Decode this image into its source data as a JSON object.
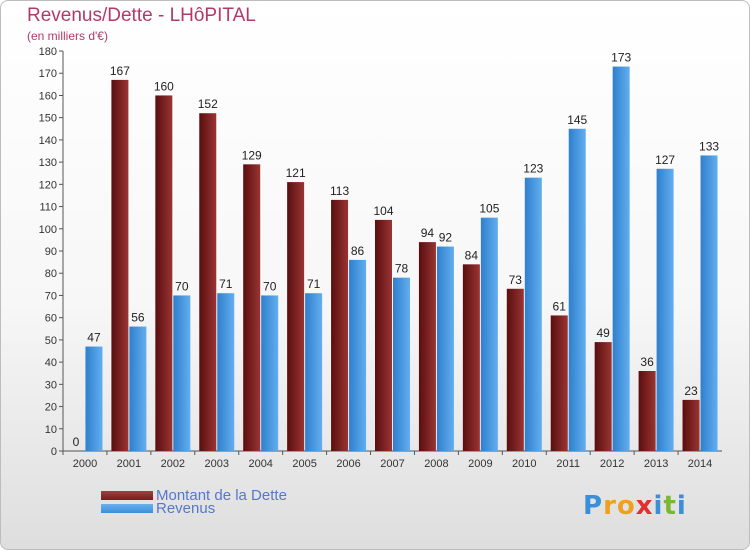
{
  "header": {
    "title": "Revenus/Dette - LHôPITAL",
    "subtitle": "(en milliers d'€)"
  },
  "legend": {
    "items": [
      {
        "label": "Montant de la Dette",
        "color": "#7a1c1c"
      },
      {
        "label": "Revenus",
        "color": "#3a8fd8"
      }
    ]
  },
  "logo": {
    "letters": [
      "P",
      "r",
      "o",
      "x",
      "i",
      "t",
      "i"
    ],
    "colors": [
      "#3a8fd8",
      "#f0a020",
      "#f0a020",
      "#e03030",
      "#3a8fd8",
      "#7cb82f",
      "#3a8fd8"
    ]
  },
  "chart_data": {
    "type": "bar",
    "categories": [
      "2000",
      "2001",
      "2002",
      "2003",
      "2004",
      "2005",
      "2006",
      "2007",
      "2008",
      "2009",
      "2010",
      "2011",
      "2012",
      "2013",
      "2014"
    ],
    "series": [
      {
        "name": "Montant de la Dette",
        "color": "#7a1c1c",
        "values": [
          0,
          167,
          160,
          152,
          129,
          121,
          113,
          104,
          94,
          84,
          73,
          61,
          49,
          36,
          23
        ]
      },
      {
        "name": "Revenus",
        "color": "#3a8fd8",
        "values": [
          47,
          56,
          70,
          71,
          70,
          71,
          86,
          78,
          92,
          105,
          123,
          145,
          173,
          127,
          133
        ]
      }
    ],
    "ylim": [
      0,
      180
    ],
    "yticks": [
      0,
      10,
      20,
      30,
      40,
      50,
      60,
      70,
      80,
      90,
      100,
      110,
      120,
      130,
      140,
      150,
      160,
      170,
      180
    ],
    "grid": false,
    "legend_position": "bottom-left"
  }
}
